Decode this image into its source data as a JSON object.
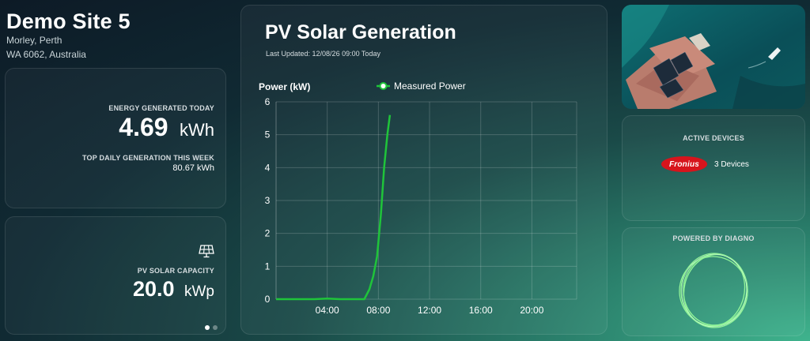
{
  "site": {
    "title": "Demo Site 5",
    "address_line1": "Morley, Perth",
    "address_line2": "WA 6062, Australia"
  },
  "energy": {
    "label": "ENERGY GENERATED TODAY",
    "value": "4.69",
    "unit": "kWh",
    "top_label": "TOP DAILY GENERATION THIS WEEK",
    "top_value": "80.67 kWh"
  },
  "capacity": {
    "icon": "solar-panel-icon",
    "label": "PV SOLAR CAPACITY",
    "value": "20.0",
    "unit": "kWp",
    "pager_pages": 2,
    "pager_active": 1
  },
  "chart_card": {
    "title": "PV Solar Generation",
    "updated": "Last Updated: 12/08/26 09:00 Today"
  },
  "chart_data": {
    "type": "line",
    "ylabel": "Power (kW)",
    "xlabel": "",
    "ylim": [
      0,
      6
    ],
    "yticks": [
      0,
      1,
      2,
      3,
      4,
      5,
      6
    ],
    "xlim": [
      0,
      23.5
    ],
    "xticks": [
      "04:00",
      "08:00",
      "12:00",
      "16:00",
      "20:00"
    ],
    "xtick_hours": [
      4,
      8,
      12,
      16,
      20
    ],
    "legend_position": "top",
    "grid": true,
    "series": [
      {
        "name": "Measured Power",
        "color": "#1fc43a",
        "x": [
          0,
          1,
          2,
          3,
          4,
          5,
          6,
          6.9,
          7.3,
          7.6,
          7.9,
          8.2,
          8.45,
          8.7,
          8.9
        ],
        "y": [
          0,
          0,
          0,
          0,
          0.02,
          0,
          0,
          0,
          0.3,
          0.7,
          1.3,
          2.6,
          4.0,
          5.0,
          5.6
        ]
      }
    ]
  },
  "devices": {
    "title": "ACTIVE DEVICES",
    "brand": "Fronius",
    "brand_color": "#d7141c",
    "count": "3 Devices"
  },
  "diagno": {
    "title": "POWERED BY DIAGNO",
    "ring_color": "#9cff9c"
  }
}
